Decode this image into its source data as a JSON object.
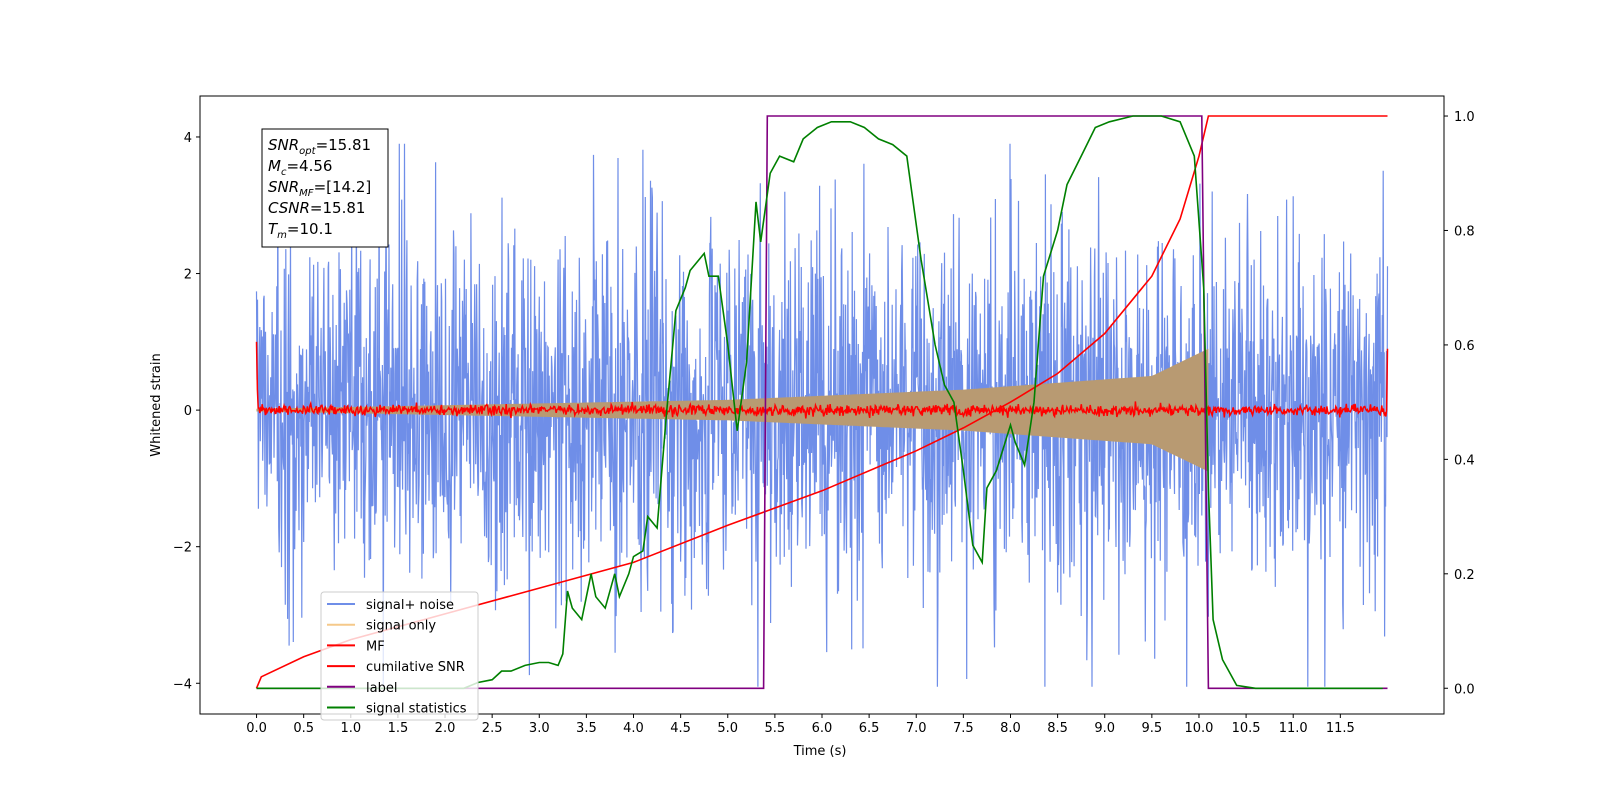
{
  "chart_data": {
    "type": "line",
    "xlabel": "Time (s)",
    "ylabel": "Whitened strain",
    "xlim": [
      -0.6,
      12.6
    ],
    "ylim": [
      -4.45,
      4.6
    ],
    "ylim_right": [
      -0.045,
      1.035
    ],
    "xticks": [
      "0.0",
      "0.5",
      "1.0",
      "1.5",
      "2.0",
      "2.5",
      "3.0",
      "3.5",
      "4.0",
      "4.5",
      "5.0",
      "5.5",
      "6.0",
      "6.5",
      "7.0",
      "7.5",
      "8.0",
      "8.5",
      "9.0",
      "9.5",
      "10.0",
      "10.5",
      "11.0",
      "11.5"
    ],
    "yticks_left": [
      "-4",
      "-2",
      "0",
      "2",
      "4"
    ],
    "yticks_right": [
      "0.0",
      "0.2",
      "0.4",
      "0.6",
      "0.8",
      "1.0"
    ],
    "legend_position": "lower-left",
    "annotation": {
      "lines": [
        {
          "var": "SNR",
          "sub": "opt",
          "value": "=15.81"
        },
        {
          "var": "M",
          "sub": "c",
          "value": "=4.56"
        },
        {
          "var": "SNR",
          "sub": "MF",
          "value": "=[14.2]"
        },
        {
          "var": "CSNR",
          "sub": "",
          "value": "=15.81"
        },
        {
          "var": "T",
          "sub": "m",
          "value": "=10.1"
        }
      ]
    },
    "series": [
      {
        "name": "signal+ noise",
        "color": "#6f8ee8",
        "axis": "left",
        "kind": "noise",
        "x_range": [
          0,
          12
        ],
        "envelope": [
          [
            0,
            2.0
          ],
          [
            6.0,
            2.4
          ],
          [
            12,
            2.0
          ]
        ]
      },
      {
        "name": "signal only",
        "color": "#f5c98a",
        "fill": "#b89a72",
        "axis": "left",
        "kind": "chirp_envelope",
        "x_range": [
          0,
          10.1
        ],
        "amplitude": [
          [
            0,
            0.02
          ],
          [
            5,
            0.15
          ],
          [
            7.5,
            0.3
          ],
          [
            9.5,
            0.5
          ],
          [
            10.1,
            0.9
          ]
        ]
      },
      {
        "name": "MF",
        "color": "#ff0000",
        "axis": "left",
        "kind": "mf",
        "x_range": [
          0,
          12
        ],
        "start_value": 1.0,
        "end_value": 0.9,
        "noise_level": 0.08
      },
      {
        "name": "cumilative SNR",
        "color": "#ff0000",
        "axis": "right",
        "kind": "curve",
        "points": [
          [
            0,
            0.0
          ],
          [
            0.05,
            0.02
          ],
          [
            0.5,
            0.055
          ],
          [
            1.0,
            0.085
          ],
          [
            2.0,
            0.13
          ],
          [
            3.0,
            0.175
          ],
          [
            4.0,
            0.22
          ],
          [
            5.0,
            0.285
          ],
          [
            6.0,
            0.345
          ],
          [
            7.0,
            0.415
          ],
          [
            7.5,
            0.455
          ],
          [
            8.0,
            0.5
          ],
          [
            8.5,
            0.55
          ],
          [
            9.0,
            0.62
          ],
          [
            9.5,
            0.72
          ],
          [
            9.8,
            0.82
          ],
          [
            10.0,
            0.93
          ],
          [
            10.1,
            1.0
          ],
          [
            12.0,
            1.0
          ]
        ]
      },
      {
        "name": "label",
        "color": "#800080",
        "axis": "right",
        "kind": "curve",
        "points": [
          [
            0,
            0
          ],
          [
            5.38,
            0
          ],
          [
            5.42,
            1
          ],
          [
            10.03,
            1
          ],
          [
            10.1,
            0
          ],
          [
            12.0,
            0
          ]
        ]
      },
      {
        "name": "signal statistics",
        "color": "#008000",
        "axis": "right",
        "kind": "curve",
        "points": [
          [
            0,
            0.0
          ],
          [
            2.2,
            0.0
          ],
          [
            2.35,
            0.01
          ],
          [
            2.5,
            0.015
          ],
          [
            2.6,
            0.03
          ],
          [
            2.7,
            0.03
          ],
          [
            2.85,
            0.04
          ],
          [
            3.0,
            0.045
          ],
          [
            3.1,
            0.045
          ],
          [
            3.2,
            0.04
          ],
          [
            3.25,
            0.06
          ],
          [
            3.3,
            0.17
          ],
          [
            3.35,
            0.14
          ],
          [
            3.45,
            0.12
          ],
          [
            3.5,
            0.16
          ],
          [
            3.55,
            0.2
          ],
          [
            3.6,
            0.16
          ],
          [
            3.7,
            0.14
          ],
          [
            3.8,
            0.2
          ],
          [
            3.85,
            0.16
          ],
          [
            3.95,
            0.2
          ],
          [
            4.0,
            0.23
          ],
          [
            4.1,
            0.24
          ],
          [
            4.15,
            0.3
          ],
          [
            4.25,
            0.28
          ],
          [
            4.35,
            0.48
          ],
          [
            4.45,
            0.66
          ],
          [
            4.55,
            0.7
          ],
          [
            4.6,
            0.73
          ],
          [
            4.75,
            0.76
          ],
          [
            4.8,
            0.72
          ],
          [
            4.9,
            0.72
          ],
          [
            5.0,
            0.6
          ],
          [
            5.1,
            0.45
          ],
          [
            5.2,
            0.57
          ],
          [
            5.3,
            0.85
          ],
          [
            5.35,
            0.78
          ],
          [
            5.45,
            0.9
          ],
          [
            5.55,
            0.93
          ],
          [
            5.7,
            0.92
          ],
          [
            5.8,
            0.96
          ],
          [
            5.95,
            0.98
          ],
          [
            6.1,
            0.99
          ],
          [
            6.3,
            0.99
          ],
          [
            6.45,
            0.98
          ],
          [
            6.6,
            0.96
          ],
          [
            6.75,
            0.95
          ],
          [
            6.9,
            0.93
          ],
          [
            7.05,
            0.75
          ],
          [
            7.2,
            0.6
          ],
          [
            7.3,
            0.53
          ],
          [
            7.4,
            0.5
          ],
          [
            7.5,
            0.38
          ],
          [
            7.6,
            0.25
          ],
          [
            7.7,
            0.22
          ],
          [
            7.75,
            0.35
          ],
          [
            7.85,
            0.38
          ],
          [
            8.0,
            0.46
          ],
          [
            8.05,
            0.43
          ],
          [
            8.15,
            0.39
          ],
          [
            8.25,
            0.5
          ],
          [
            8.35,
            0.72
          ],
          [
            8.5,
            0.8
          ],
          [
            8.6,
            0.88
          ],
          [
            8.75,
            0.93
          ],
          [
            8.9,
            0.98
          ],
          [
            9.05,
            0.99
          ],
          [
            9.3,
            1.0
          ],
          [
            9.6,
            1.0
          ],
          [
            9.8,
            0.99
          ],
          [
            9.95,
            0.93
          ],
          [
            10.05,
            0.7
          ],
          [
            10.1,
            0.35
          ],
          [
            10.15,
            0.12
          ],
          [
            10.25,
            0.05
          ],
          [
            10.4,
            0.005
          ],
          [
            10.6,
            0.0
          ],
          [
            11.95,
            0.0
          ]
        ]
      }
    ]
  }
}
